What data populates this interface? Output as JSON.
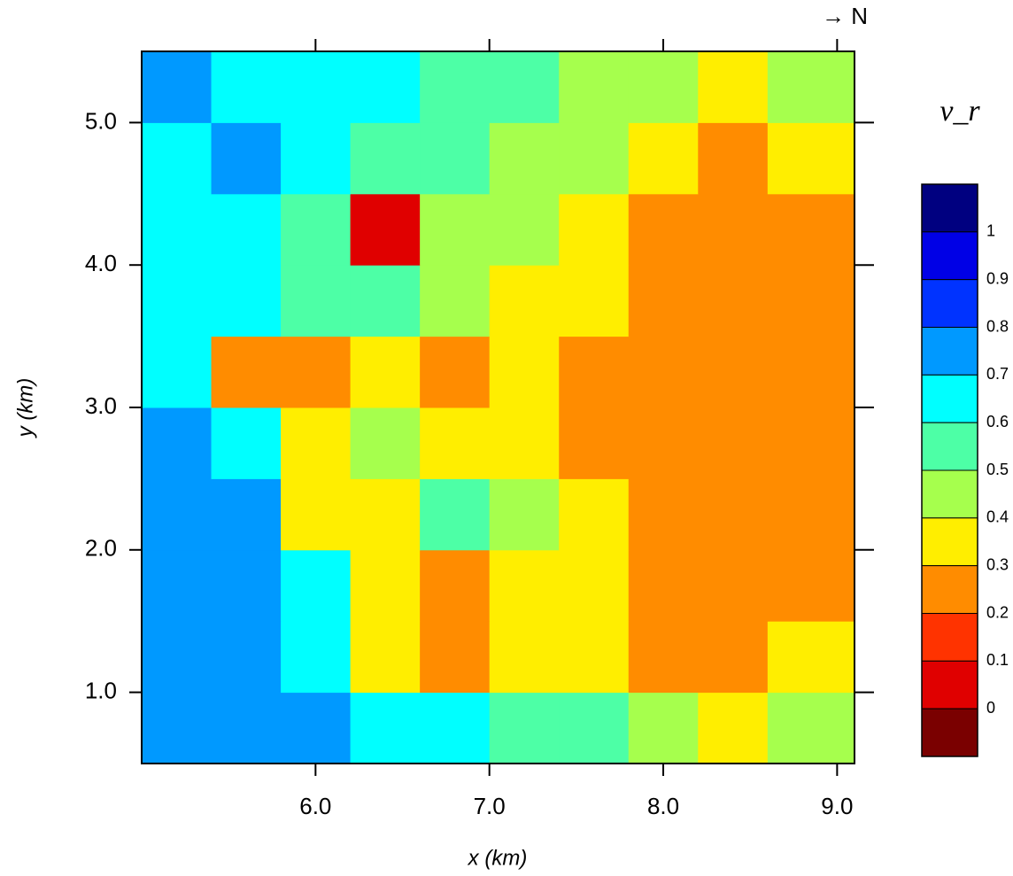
{
  "chart_data": {
    "type": "heatmap",
    "annotation": "→ N",
    "xlabel": "x (km)",
    "ylabel": "y (km)",
    "xlim": [
      5.0,
      9.1
    ],
    "ylim": [
      0.5,
      5.5
    ],
    "xticks": [
      {
        "value": 6,
        "label": "6.0"
      },
      {
        "value": 7,
        "label": "7.0"
      },
      {
        "value": 8,
        "label": "8.0"
      },
      {
        "value": 9,
        "label": "9.0"
      }
    ],
    "yticks": [
      {
        "value": 1,
        "label": "1.0"
      },
      {
        "value": 2,
        "label": "2.0"
      },
      {
        "value": 3,
        "label": "3.0"
      },
      {
        "value": 4,
        "label": "4.0"
      },
      {
        "value": 5,
        "label": "5.0"
      }
    ],
    "x_edges": [
      5.0,
      5.4,
      5.8,
      6.2,
      6.6,
      7.0,
      7.4,
      7.8,
      8.2,
      8.6,
      9.1
    ],
    "y_edges": [
      0.5,
      1.0,
      1.5,
      2.0,
      2.5,
      3.0,
      3.5,
      4.0,
      4.5,
      5.0,
      5.5
    ],
    "z": [
      [
        0.75,
        0.75,
        0.7,
        0.65,
        0.6,
        0.55,
        0.5,
        0.45,
        0.35,
        0.45
      ],
      [
        0.75,
        0.75,
        0.65,
        0.3,
        0.2,
        0.35,
        0.3,
        0.2,
        0.2,
        0.35
      ],
      [
        0.75,
        0.75,
        0.6,
        0.3,
        0.2,
        0.3,
        0.35,
        0.2,
        0.2,
        0.2
      ],
      [
        0.75,
        0.7,
        0.3,
        0.3,
        0.55,
        0.45,
        0.3,
        0.2,
        0.2,
        0.2
      ],
      [
        0.75,
        0.6,
        0.3,
        0.45,
        0.3,
        0.3,
        0.2,
        0.2,
        0.2,
        0.2
      ],
      [
        0.65,
        0.2,
        0.2,
        0.3,
        0.2,
        0.3,
        0.2,
        0.2,
        0.2,
        0.25
      ],
      [
        0.65,
        0.65,
        0.55,
        0.55,
        0.45,
        0.3,
        0.3,
        0.2,
        0.2,
        0.25
      ],
      [
        0.65,
        0.65,
        0.55,
        0.0,
        0.45,
        0.45,
        0.35,
        0.2,
        0.2,
        0.2
      ],
      [
        0.65,
        0.7,
        0.65,
        0.55,
        0.5,
        0.45,
        0.45,
        0.3,
        0.2,
        0.35
      ],
      [
        0.7,
        0.65,
        0.65,
        0.6,
        0.55,
        0.5,
        0.45,
        0.45,
        0.35,
        0.4
      ]
    ],
    "colorbar": {
      "title": "v_r",
      "levels": [
        1,
        0.9,
        0.8,
        0.7,
        0.6,
        0.5,
        0.4,
        0.3,
        0.2,
        0.1,
        0
      ],
      "colors": [
        "#000080",
        "#0000e6",
        "#0033ff",
        "#0099ff",
        "#00ffff",
        "#4dffa6",
        "#a6ff4d",
        "#ffee00",
        "#ff8c00",
        "#ff3300",
        "#e00000",
        "#7a0000"
      ]
    }
  }
}
